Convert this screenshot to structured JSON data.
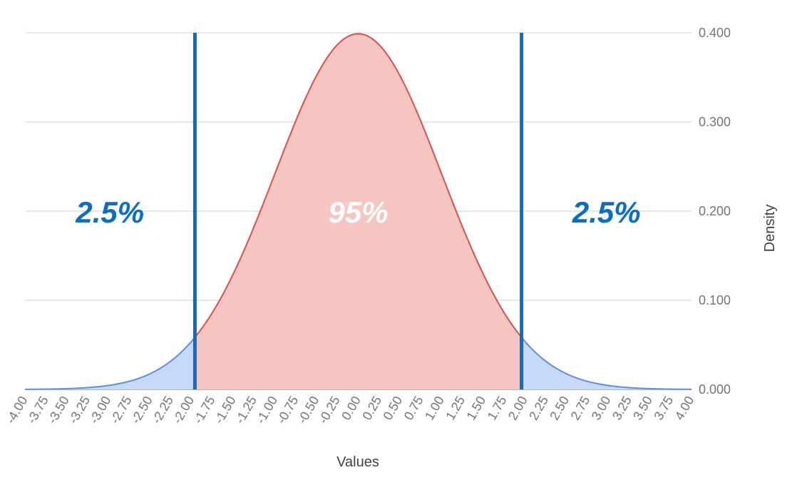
{
  "chart_data": {
    "type": "area",
    "xlabel": "Values",
    "ylabel": "Density",
    "xlim": [
      -4.0,
      4.0
    ],
    "ylim": [
      0.0,
      0.4
    ],
    "x_ticks": [
      "-4.00",
      "-3.75",
      "-3.50",
      "-3.25",
      "-3.00",
      "-2.75",
      "-2.50",
      "-2.25",
      "-2.00",
      "-1.75",
      "-1.50",
      "-1.25",
      "-1.00",
      "-0.75",
      "-0.50",
      "-0.25",
      "0.00",
      "0.25",
      "0.50",
      "0.75",
      "1.00",
      "1.25",
      "1.50",
      "1.75",
      "2.00",
      "2.25",
      "2.50",
      "2.75",
      "3.00",
      "3.25",
      "3.50",
      "3.75",
      "4.00"
    ],
    "y_ticks": [
      "0.000",
      "0.100",
      "0.200",
      "0.300",
      "0.400"
    ],
    "grid": true,
    "series": [
      {
        "x": [
          -4.0,
          -3.75,
          -3.5,
          -3.25,
          -3.0,
          -2.75,
          -2.5,
          -2.25,
          -2.0,
          -1.75,
          -1.5,
          -1.25,
          -1.0,
          -0.75,
          -0.5,
          -0.25,
          0.0,
          0.25,
          0.5,
          0.75,
          1.0,
          1.25,
          1.5,
          1.75,
          2.0,
          2.25,
          2.5,
          2.75,
          3.0,
          3.25,
          3.5,
          3.75,
          4.0
        ],
        "y": [
          0.0001,
          0.0004,
          0.0009,
          0.002,
          0.0044,
          0.0091,
          0.0175,
          0.0317,
          0.054,
          0.0863,
          0.1295,
          0.1826,
          0.242,
          0.3011,
          0.3521,
          0.3867,
          0.3989,
          0.3867,
          0.3521,
          0.3011,
          0.242,
          0.1826,
          0.1295,
          0.0863,
          0.054,
          0.0317,
          0.0175,
          0.0091,
          0.0044,
          0.002,
          0.0009,
          0.0004,
          0.0001
        ]
      }
    ],
    "cutoffs": [
      -1.96,
      1.96
    ],
    "regions": [
      {
        "label": "2.5%",
        "from": -4.0,
        "to": -1.96,
        "color": "#0b6ec0",
        "fill": "#c7d9f6",
        "line": "#5b8ee8"
      },
      {
        "label": "95%",
        "from": -1.96,
        "to": 1.96,
        "color": "#ffffff",
        "fill": "#f4c5c1",
        "line": "#d9504a"
      },
      {
        "label": "2.5%",
        "from": 1.96,
        "to": 4.0,
        "color": "#0b6ec0",
        "fill": "#c7d9f6",
        "line": "#5b8ee8"
      }
    ],
    "cutoff_color": "#0b6ec0",
    "grid_color": "#e0e0e0",
    "baseline_color": "#9e9e9e"
  }
}
